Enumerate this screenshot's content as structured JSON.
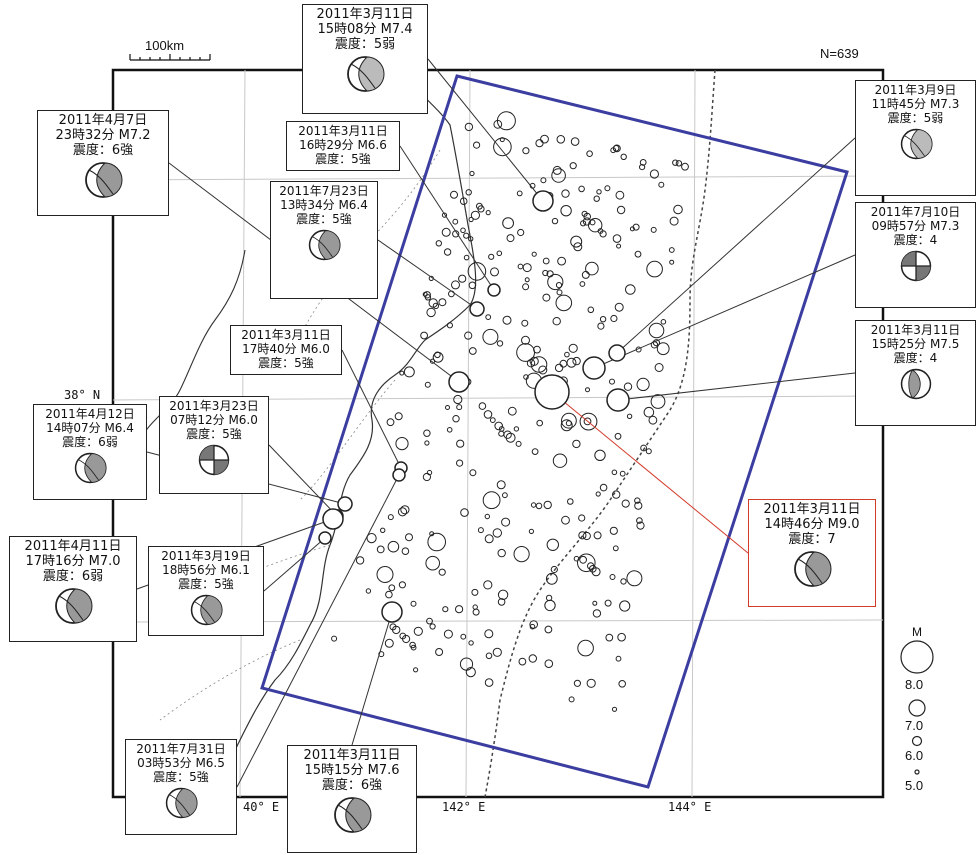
{
  "map": {
    "scale_label": "100km",
    "count_label": "N=639",
    "lat_label": "38° N",
    "lon_labels": [
      "40° E",
      "142° E",
      "144° E"
    ],
    "legend": {
      "title": "M",
      "values": [
        "8.0",
        "7.0",
        "6.0",
        "5.0"
      ]
    },
    "colors": {
      "region_box": "#3b3ea0",
      "main_event": "#d23a2a",
      "epicenter": "#222222"
    }
  },
  "events": [
    {
      "date": "2011年3月11日",
      "time_mag": "15時08分 M7.4",
      "intensity": "震度：5弱"
    },
    {
      "date": "2011年4月7日",
      "time_mag": "23時32分 M7.2",
      "intensity": "震度：6強"
    },
    {
      "date": "2011年3月11日",
      "time_mag": "16時29分 M6.6",
      "intensity": "震度：5強"
    },
    {
      "date": "2011年7月23日",
      "time_mag": "13時34分 M6.4",
      "intensity": "震度：5強"
    },
    {
      "date": "2011年3月11日",
      "time_mag": "17時40分 M6.0",
      "intensity": "震度：5強"
    },
    {
      "date": "2011年4月12日",
      "time_mag": "14時07分 M6.4",
      "intensity": "震度：6弱"
    },
    {
      "date": "2011年3月23日",
      "time_mag": "07時12分 M6.0",
      "intensity": "震度：5強"
    },
    {
      "date": "2011年4月11日",
      "time_mag": "17時16分 M7.0",
      "intensity": "震度：6弱"
    },
    {
      "date": "2011年3月19日",
      "time_mag": "18時56分 M6.1",
      "intensity": "震度：5強"
    },
    {
      "date": "2011年7月31日",
      "time_mag": "03時53分 M6.5",
      "intensity": "震度：5強"
    },
    {
      "date": "2011年3月11日",
      "time_mag": "15時15分 M7.6",
      "intensity": "震度：6強"
    },
    {
      "date": "2011年3月9日",
      "time_mag": "11時45分 M7.3",
      "intensity": "震度：5弱"
    },
    {
      "date": "2011年7月10日",
      "time_mag": "09時57分 M7.3",
      "intensity": "震度：4"
    },
    {
      "date": "2011年3月11日",
      "time_mag": "15時25分 M7.5",
      "intensity": "震度：4"
    },
    {
      "date": "2011年3月11日",
      "time_mag": "14時46分 M9.0",
      "intensity": "震度：7"
    }
  ]
}
